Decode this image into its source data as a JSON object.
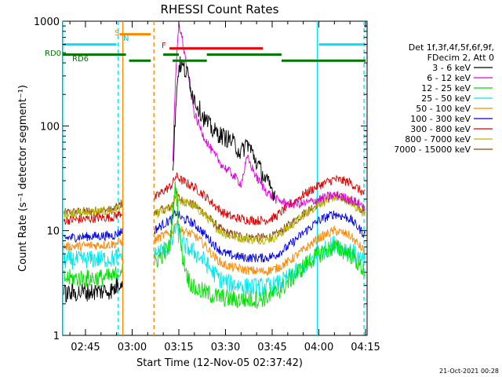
{
  "chart_data": {
    "type": "line",
    "title": "RHESSI Count Rates",
    "xlabel": "Start Time (12-Nov-05 02:37:42)",
    "ylabel": "Count Rate (s⁻¹ detector segment⁻¹)",
    "yscale": "log",
    "ylim": [
      1,
      1000
    ],
    "xlim": [
      "02:37:42",
      "04:15:30"
    ],
    "x_ticks": [
      "02:45",
      "03:00",
      "03:15",
      "03:30",
      "03:45",
      "04:00",
      "04:15"
    ],
    "y_ticks": [
      "1",
      "10",
      "100",
      "1000"
    ],
    "grid": false,
    "legend_position": "right",
    "legend_header": [
      "Det 1f,3f,4f,5f,6f,9f,",
      "FDecim 2, Att 0"
    ],
    "timestamp": "21-Oct-2021 00:28",
    "annotations": {
      "rd0": "RD0",
      "rd6": "RD6",
      "s": "S",
      "n": "N",
      "f": "F"
    },
    "time_points": [
      "02:38",
      "02:46",
      "02:54",
      "02:57",
      "02:59",
      "03:07",
      "03:10",
      "03:12",
      "03:13",
      "03:14",
      "03:15",
      "03:16",
      "03:18",
      "03:20",
      "03:23",
      "03:26",
      "03:29",
      "03:32",
      "03:35",
      "03:37",
      "03:40",
      "03:43",
      "03:46",
      "03:50",
      "03:55",
      "04:00",
      "04:05",
      "04:10",
      "04:15"
    ],
    "series": [
      {
        "name": "3 - 6 keV",
        "color": "#000000",
        "values": [
          2.5,
          2.6,
          2.7,
          3.5,
          null,
          null,
          null,
          null,
          28,
          160,
          380,
          380,
          300,
          180,
          120,
          90,
          80,
          72,
          55,
          70,
          45,
          30,
          22,
          null,
          null,
          null,
          null,
          null,
          null
        ]
      },
      {
        "name": "6 - 12 keV",
        "color": "#e000e0",
        "values": [
          null,
          null,
          null,
          null,
          null,
          null,
          null,
          null,
          40,
          300,
          950,
          700,
          300,
          130,
          80,
          55,
          42,
          35,
          28,
          50,
          32,
          24,
          20,
          18,
          18,
          20,
          22,
          20,
          17
        ]
      },
      {
        "name": "12 - 25 keV",
        "color": "#00e000",
        "values": [
          3.5,
          3.5,
          3.6,
          4.5,
          null,
          5,
          6,
          7,
          14,
          28,
          12,
          6,
          3.5,
          2.8,
          2.6,
          2.4,
          2.3,
          2.2,
          2.2,
          2.2,
          2.2,
          2.3,
          2.5,
          3.2,
          4.5,
          6,
          7,
          6,
          4
        ]
      },
      {
        "name": "25 - 50 keV",
        "color": "#00e8e8",
        "values": [
          5.2,
          5.3,
          5.4,
          6,
          null,
          6,
          6.5,
          7,
          8,
          11,
          9,
          7.5,
          6.8,
          6.2,
          5.2,
          4,
          3.3,
          3.1,
          3,
          2.9,
          2.9,
          2.9,
          3,
          3.5,
          4.5,
          6,
          7.5,
          6.5,
          4.8
        ]
      },
      {
        "name": "50 - 100 keV",
        "color": "#ff8800",
        "values": [
          7,
          7.2,
          7.4,
          8,
          null,
          8,
          9,
          9.5,
          10,
          12,
          11,
          10,
          9.5,
          9,
          7.5,
          5.8,
          4.8,
          4.5,
          4.3,
          4.2,
          4.1,
          4.1,
          4.3,
          5,
          6.5,
          8.5,
          10,
          9,
          6.2
        ]
      },
      {
        "name": "100 - 300 keV",
        "color": "#0000e0",
        "values": [
          8.5,
          8.8,
          9,
          10,
          null,
          10,
          11.5,
          12.5,
          13,
          15,
          14,
          13,
          12.5,
          11.5,
          9.5,
          7.5,
          6.2,
          5.8,
          5.6,
          5.5,
          5.5,
          5.5,
          5.8,
          7,
          9.5,
          12.5,
          14.5,
          13,
          9
        ]
      },
      {
        "name": "300 - 800 keV",
        "color": "#e00000",
        "values": [
          12.5,
          13,
          13.5,
          15,
          null,
          20,
          24,
          26,
          28,
          33,
          32,
          30,
          28,
          26,
          22,
          18,
          15,
          13.5,
          13,
          12.7,
          12.5,
          12.6,
          13.5,
          17,
          22,
          27,
          31,
          29,
          22
        ]
      },
      {
        "name": "800 - 7000 keV",
        "color": "#b8b800",
        "values": [
          14.5,
          15,
          15.5,
          18,
          null,
          14,
          15.5,
          16,
          17,
          22,
          20,
          19,
          18,
          17,
          14.5,
          11.5,
          9.5,
          8.8,
          8.5,
          8.3,
          8.2,
          8.2,
          8.6,
          10.5,
          14,
          18,
          21,
          19,
          14
        ]
      },
      {
        "name": "7000 - 15000 keV",
        "color": "#8b4513",
        "values": [
          14.8,
          15.3,
          15.8,
          18.5,
          null,
          14.5,
          16,
          16.5,
          17.5,
          22.5,
          20.5,
          19.5,
          18.5,
          17.5,
          15,
          12,
          10,
          9.2,
          8.9,
          8.7,
          8.6,
          8.6,
          9,
          11,
          14.5,
          18.5,
          21.5,
          19.5,
          14.5
        ]
      }
    ],
    "state_bars": [
      {
        "label": "N",
        "color": "#00e0ff",
        "segments": [
          [
            "02:37:42",
            "02:55"
          ],
          [
            "04:00",
            "04:15"
          ]
        ],
        "level": 600
      },
      {
        "label": "S",
        "color": "#ff8800",
        "segments": [
          [
            "02:56",
            "03:06"
          ]
        ],
        "level": 750
      },
      {
        "label": "F",
        "color": "#ee0000",
        "segments": [
          [
            "03:12",
            "03:42"
          ]
        ],
        "level": 550
      },
      {
        "label": "RD0",
        "color": "#007700",
        "segments": [
          [
            "02:37:42",
            "02:58"
          ],
          [
            "03:10",
            "03:15"
          ],
          [
            "03:24",
            "03:48"
          ]
        ],
        "level": 480
      },
      {
        "label": "RD6",
        "color": "#007700",
        "segments": [
          [
            "02:59",
            "03:06"
          ],
          [
            "03:13",
            "03:24"
          ],
          [
            "03:48",
            "04:15"
          ]
        ],
        "level": 420
      }
    ],
    "vertical_lines": [
      {
        "time": "02:37:42",
        "color": "#00e0ff",
        "style": "solid"
      },
      {
        "time": "02:55:30",
        "color": "#00e0ff",
        "style": "dashed"
      },
      {
        "time": "02:57:00",
        "color": "#ff8800",
        "style": "solid"
      },
      {
        "time": "03:07:00",
        "color": "#ff8800",
        "style": "dashed"
      },
      {
        "time": "03:59:30",
        "color": "#00e0ff",
        "style": "solid"
      },
      {
        "time": "04:14:30",
        "color": "#00e0ff",
        "style": "dashed"
      }
    ]
  }
}
